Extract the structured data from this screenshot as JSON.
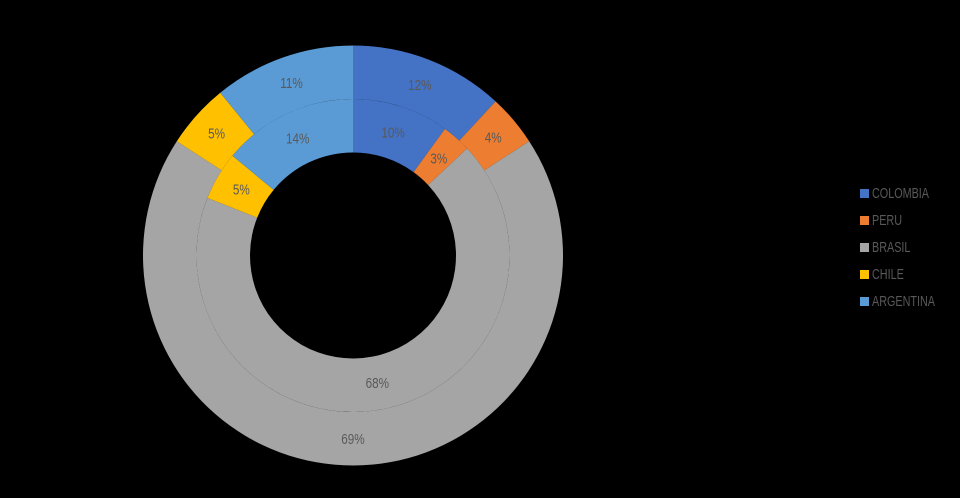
{
  "page": {
    "background_color": "#000000"
  },
  "chart_data": {
    "type": "doughnut",
    "title": "",
    "categories": [
      "COLOMBIA",
      "PERU",
      "BRASIL",
      "CHILE",
      "ARGENTINA"
    ],
    "colors": [
      "#4472C4",
      "#ED7D31",
      "#A5A5A5",
      "#FFC000",
      "#5B9BD5"
    ],
    "series": [
      {
        "name": "inner-ring",
        "values": [
          10,
          3,
          68,
          5,
          14
        ],
        "labels": [
          "10%",
          "3%",
          "68%",
          "5%",
          "14%"
        ]
      },
      {
        "name": "outer-ring",
        "values": [
          12,
          4,
          69,
          5,
          11
        ],
        "labels": [
          "12%",
          "4%",
          "69%",
          "5%",
          "11%"
        ]
      }
    ],
    "start_angle_deg": 0,
    "direction": "clockwise",
    "hole_radius_ratio": 0.49,
    "data_label_color": "#595959",
    "legend": {
      "position": "right",
      "entries": [
        "COLOMBIA",
        "PERU",
        "BRASIL",
        "CHILE",
        "ARGENTINA"
      ],
      "text_color": "#595959"
    }
  }
}
